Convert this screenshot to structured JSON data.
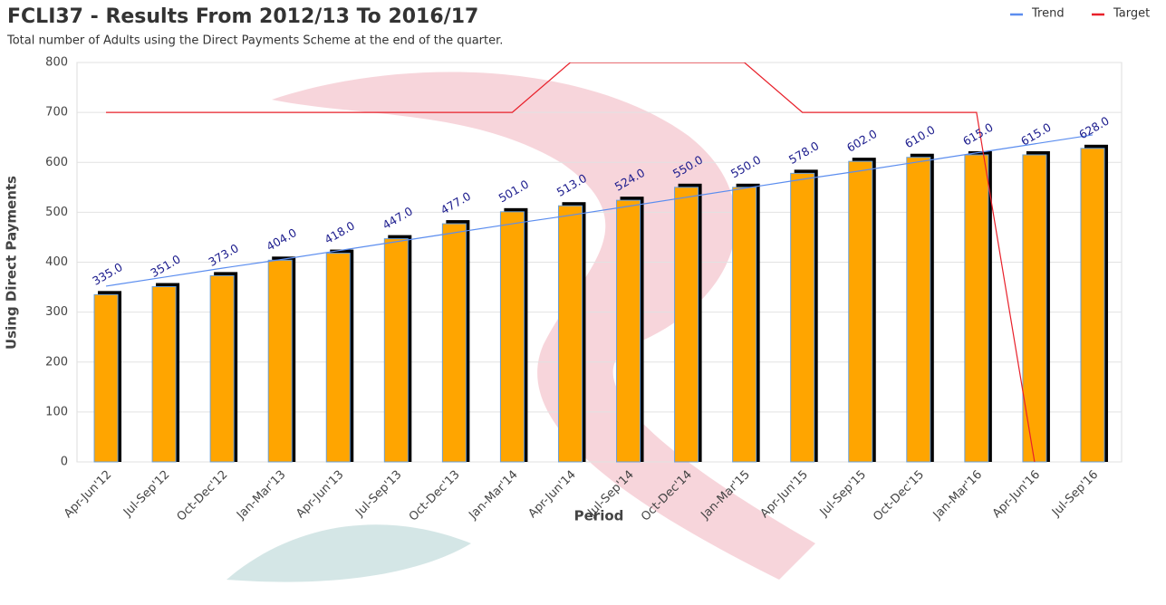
{
  "chart_data": {
    "type": "bar",
    "title": "FCLI37 - Results From 2012/13 To 2016/17",
    "subtitle": "Total number of Adults using the Direct Payments Scheme at the end of the quarter.",
    "x_label": "Period",
    "y_label": "Using Direct Payments",
    "categories": [
      "Apr-Jun'12",
      "Jul-Sep'12",
      "Oct-Dec'12",
      "Jan-Mar'13",
      "Apr-Jun'13",
      "Jul-Sep'13",
      "Oct-Dec'13",
      "Jan-Mar'14",
      "Apr-Jun'14",
      "Jul-Sep'14",
      "Oct-Dec'14",
      "Jan-Mar'15",
      "Apr-Jun'15",
      "Jul-Sep'15",
      "Oct-Dec'15",
      "Jan-Mar'16",
      "Apr-Jun'16",
      "Jul-Sep'16"
    ],
    "values": [
      335,
      351,
      373,
      404,
      418,
      447,
      477,
      501,
      513,
      524,
      550,
      550,
      578,
      602,
      610,
      615,
      615,
      628
    ],
    "value_labels": [
      "335.0",
      "351.0",
      "373.0",
      "404.0",
      "418.0",
      "447.0",
      "477.0",
      "501.0",
      "513.0",
      "524.0",
      "550.0",
      "550.0",
      "578.0",
      "602.0",
      "610.0",
      "615.0",
      "615.0",
      "628.0"
    ],
    "color": "#ffa500",
    "series": [
      {
        "name": "Trend",
        "type": "line",
        "color": "#5b8def",
        "values": [
          352,
          370,
          388,
          405,
          423,
          441,
          459,
          477,
          494,
          512,
          530,
          548,
          566,
          583,
          601,
          619,
          637,
          655
        ]
      },
      {
        "name": "Target",
        "type": "line",
        "color": "#e8202a",
        "values": [
          700,
          700,
          700,
          700,
          700,
          700,
          700,
          700,
          800,
          800,
          800,
          800,
          700,
          700,
          700,
          700,
          0,
          null
        ]
      }
    ],
    "ylim": [
      0,
      800
    ],
    "yticks": [
      0,
      100,
      200,
      300,
      400,
      500,
      600,
      700,
      800
    ],
    "grid": true,
    "legend": "top-right"
  }
}
